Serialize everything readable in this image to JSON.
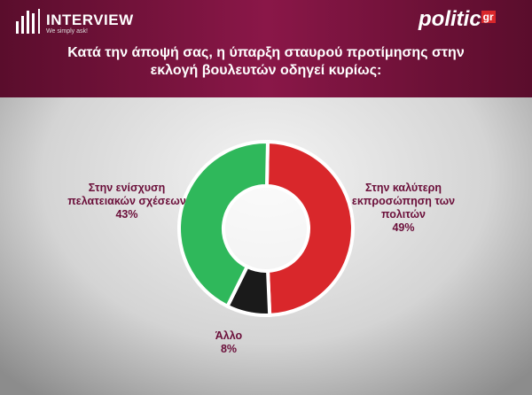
{
  "header": {
    "brand": "INTERVIEW",
    "tagline": "We simply ask!",
    "logo": "politic",
    "logo_suffix": "gr"
  },
  "chart_data": {
    "type": "donut",
    "title": "Κατά την άποψή σας, η ύπαρξη σταυρού προτίμησης στην εκλογή βουλευτών οδηγεί κυρίως:",
    "categories": [
      "Στην καλύτερη εκπροσώπηση των πολιτών",
      "Άλλο",
      "Στην ενίσχυση πελατειακών σχέσεων"
    ],
    "values": [
      49,
      8,
      43
    ],
    "value_labels": [
      "49%",
      "8%",
      "43%"
    ],
    "colors": [
      "#d9272b",
      "#1a1a1a",
      "#2fb85b"
    ]
  }
}
